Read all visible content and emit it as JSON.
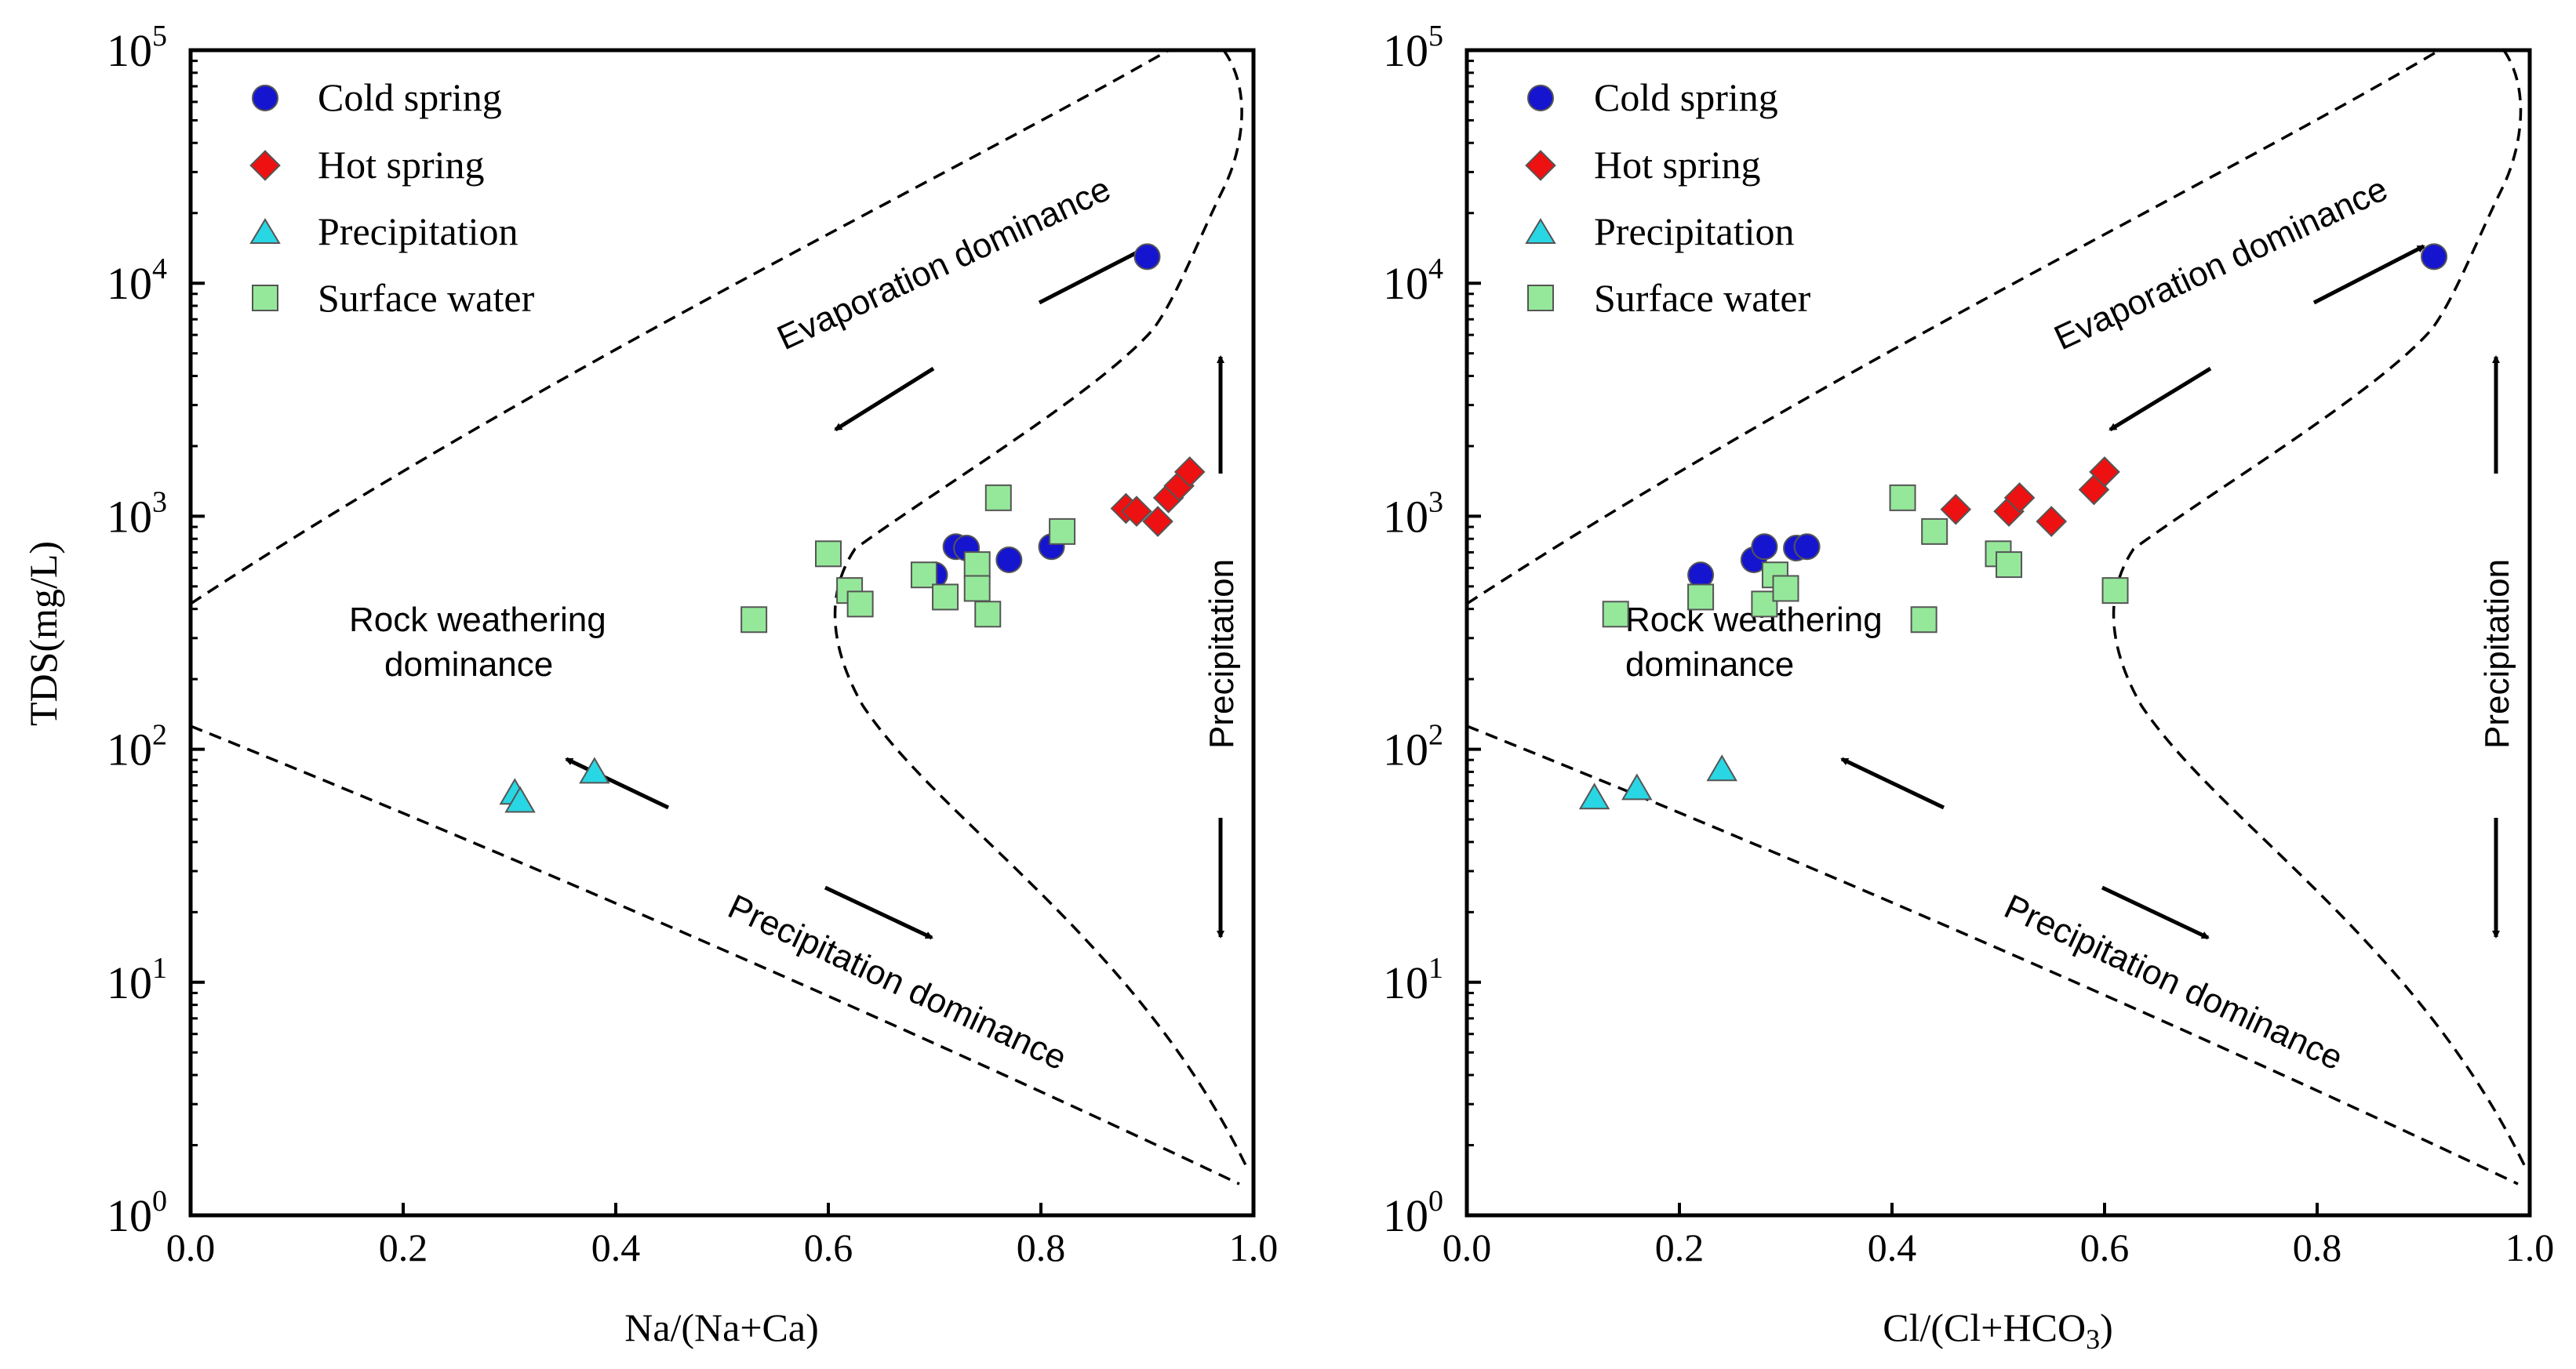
{
  "colors": {
    "cold_spring": "#1515cf",
    "hot_spring": "#ee1111",
    "precipitation": "#29d6e3",
    "surface_water": "#95e89a",
    "marker_edge": "#555555",
    "axis": "#000000"
  },
  "legend": [
    {
      "key": "cold_spring",
      "label": "Cold spring",
      "marker": "circle"
    },
    {
      "key": "hot_spring",
      "label": "Hot spring",
      "marker": "diamond"
    },
    {
      "key": "precipitation",
      "label": "Precipitation",
      "marker": "triangle"
    },
    {
      "key": "surface_water",
      "label": "Surface water",
      "marker": "square"
    }
  ],
  "annotations": {
    "evaporation": "Evaporation dominance",
    "rock_line1": "Rock weathering",
    "rock_line2": "dominance",
    "precip_dominance": "Precipitation dominance",
    "precip_vertical": "Precipitation"
  },
  "chart_data": [
    {
      "type": "scatter",
      "title": "",
      "ylabel": "TDS(mg/L)",
      "xlabel": "Na/(Na+Ca)",
      "xlim": [
        0,
        1
      ],
      "ylim": [
        1,
        100000
      ],
      "yscale": "log",
      "x_ticks": [
        "0.0",
        "0.2",
        "0.4",
        "0.6",
        "0.8",
        "1.0"
      ],
      "y_ticks": [
        {
          "base": "10",
          "exp": "0",
          "value": 1
        },
        {
          "base": "10",
          "exp": "1",
          "value": 10
        },
        {
          "base": "10",
          "exp": "2",
          "value": 100
        },
        {
          "base": "10",
          "exp": "3",
          "value": 1000
        },
        {
          "base": "10",
          "exp": "4",
          "value": 10000
        },
        {
          "base": "10",
          "exp": "5",
          "value": 100000
        }
      ],
      "series": [
        {
          "name": "Cold spring",
          "key": "cold_spring",
          "points": [
            [
              0.7,
              560
            ],
            [
              0.72,
              740
            ],
            [
              0.73,
              730
            ],
            [
              0.77,
              650
            ],
            [
              0.81,
              740
            ],
            [
              0.9,
              13000
            ]
          ]
        },
        {
          "name": "Hot spring",
          "key": "hot_spring",
          "points": [
            [
              0.88,
              1080
            ],
            [
              0.89,
              1050
            ],
            [
              0.91,
              950
            ],
            [
              0.92,
              1200
            ],
            [
              0.93,
              1350
            ],
            [
              0.94,
              1550
            ]
          ]
        },
        {
          "name": "Precipitation",
          "key": "precipitation",
          "points": [
            [
              0.305,
              65
            ],
            [
              0.31,
              60
            ],
            [
              0.38,
              80
            ]
          ]
        },
        {
          "name": "Surface water",
          "key": "surface_water",
          "points": [
            [
              0.53,
              360
            ],
            [
              0.6,
              690
            ],
            [
              0.62,
              480
            ],
            [
              0.63,
              420
            ],
            [
              0.69,
              560
            ],
            [
              0.71,
              450
            ],
            [
              0.74,
              620
            ],
            [
              0.74,
              490
            ],
            [
              0.75,
              380
            ],
            [
              0.76,
              1200
            ],
            [
              0.82,
              860
            ]
          ]
        }
      ]
    },
    {
      "type": "scatter",
      "title": "",
      "ylabel": "",
      "xlabel_main": "Cl/(Cl+HCO",
      "xlabel_sub": "3",
      "xlabel_tail": ")",
      "xlim": [
        0,
        1
      ],
      "ylim": [
        1,
        100000
      ],
      "yscale": "log",
      "x_ticks": [
        "0.0",
        "0.2",
        "0.4",
        "0.6",
        "0.8",
        "1.0"
      ],
      "y_ticks": [
        {
          "base": "10",
          "exp": "0",
          "value": 1
        },
        {
          "base": "10",
          "exp": "1",
          "value": 10
        },
        {
          "base": "10",
          "exp": "2",
          "value": 100
        },
        {
          "base": "10",
          "exp": "3",
          "value": 1000
        },
        {
          "base": "10",
          "exp": "4",
          "value": 10000
        },
        {
          "base": "10",
          "exp": "5",
          "value": 100000
        }
      ],
      "series": [
        {
          "name": "Cold spring",
          "key": "cold_spring",
          "points": [
            [
              0.22,
              560
            ],
            [
              0.27,
              650
            ],
            [
              0.28,
              740
            ],
            [
              0.31,
              730
            ],
            [
              0.32,
              740
            ],
            [
              0.91,
              13000
            ]
          ]
        },
        {
          "name": "Hot spring",
          "key": "hot_spring",
          "points": [
            [
              0.46,
              1070
            ],
            [
              0.51,
              1050
            ],
            [
              0.52,
              1200
            ],
            [
              0.55,
              950
            ],
            [
              0.59,
              1300
            ],
            [
              0.6,
              1550
            ]
          ]
        },
        {
          "name": "Precipitation",
          "key": "precipitation",
          "points": [
            [
              0.12,
              62
            ],
            [
              0.16,
              68
            ],
            [
              0.24,
              82
            ]
          ]
        },
        {
          "name": "Surface water",
          "key": "surface_water",
          "points": [
            [
              0.14,
              380
            ],
            [
              0.22,
              450
            ],
            [
              0.28,
              420
            ],
            [
              0.29,
              560
            ],
            [
              0.3,
              490
            ],
            [
              0.41,
              1200
            ],
            [
              0.43,
              360
            ],
            [
              0.44,
              860
            ],
            [
              0.5,
              690
            ],
            [
              0.51,
              620
            ],
            [
              0.61,
              480
            ]
          ]
        }
      ]
    }
  ]
}
